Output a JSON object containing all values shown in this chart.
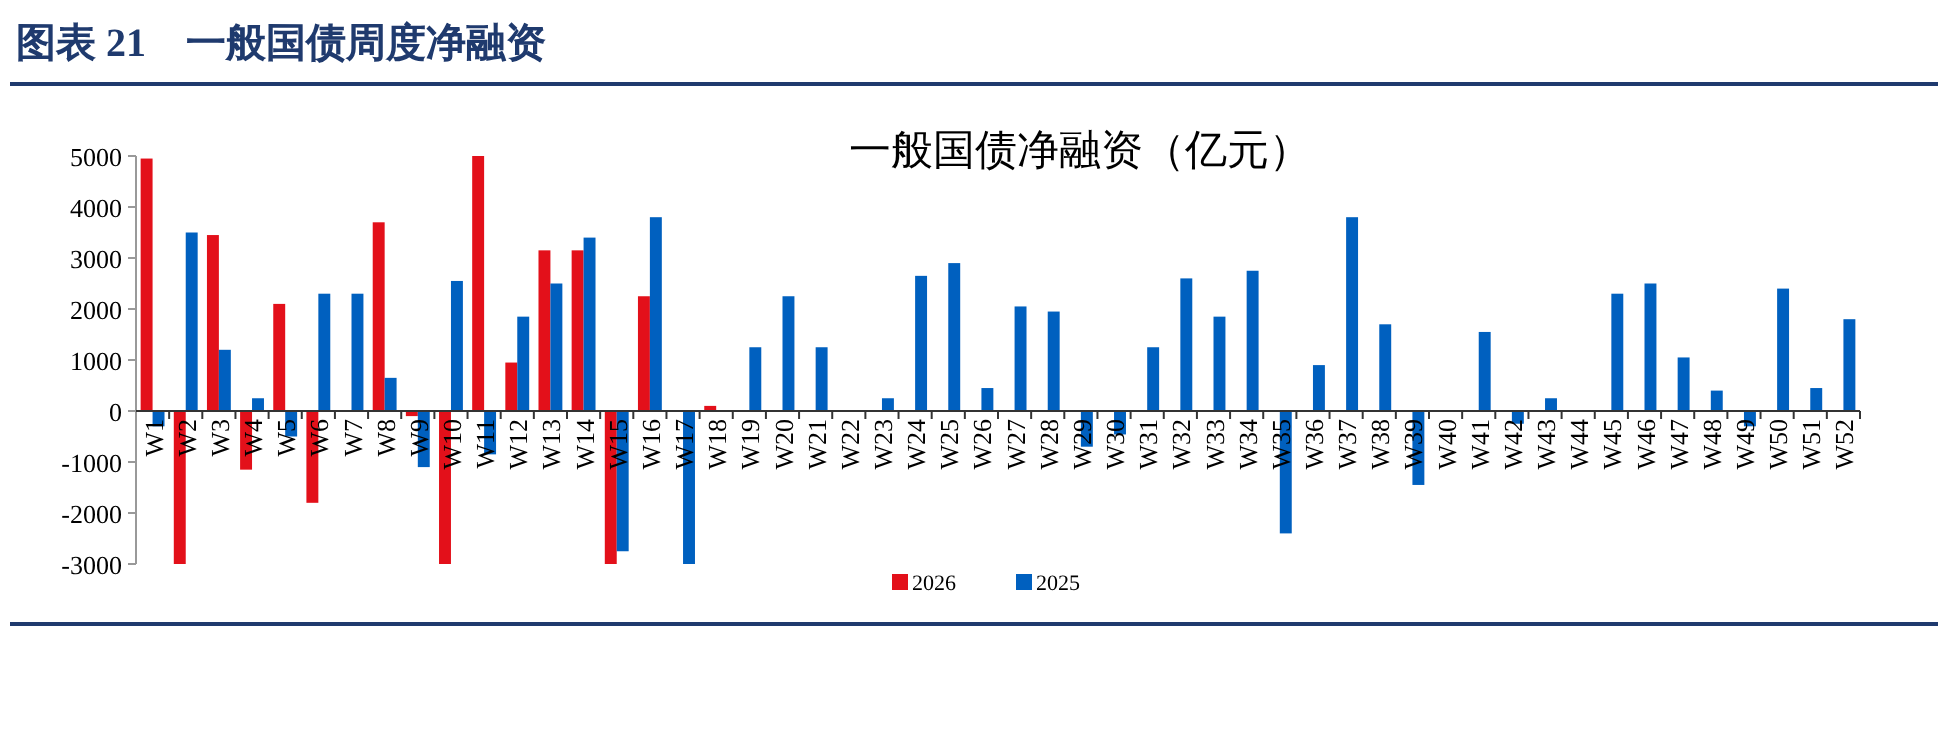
{
  "chart_data": {
    "type": "bar",
    "title": "图表 21　一般国债周度净融资",
    "subtitle": "一般国债净融资（亿元）",
    "categories": [
      "W1",
      "W2",
      "W3",
      "W4",
      "W5",
      "W6",
      "W7",
      "W8",
      "W9",
      "W10",
      "W11",
      "W12",
      "W13",
      "W14",
      "W15",
      "W16",
      "W17",
      "W18",
      "W19",
      "W20",
      "W21",
      "W22",
      "W23",
      "W24",
      "W25",
      "W26",
      "W27",
      "W28",
      "W29",
      "W30",
      "W31",
      "W32",
      "W33",
      "W34",
      "W35",
      "W36",
      "W37",
      "W38",
      "W39",
      "W40",
      "W41",
      "W42",
      "W43",
      "W44",
      "W45",
      "W46",
      "W47",
      "W48",
      "W49",
      "W50",
      "W51",
      "W52"
    ],
    "series": [
      {
        "name": "2026",
        "color": "#e3101a",
        "values": [
          4950,
          -3000,
          3450,
          -1150,
          2100,
          -1800,
          null,
          3700,
          -100,
          -3000,
          5000,
          950,
          3150,
          3150,
          -3000,
          2250,
          null,
          100,
          null,
          null,
          null,
          null,
          null,
          null,
          null,
          null,
          null,
          null,
          null,
          null,
          null,
          null,
          null,
          null,
          null,
          null,
          null,
          null,
          null,
          null,
          null,
          null,
          null,
          null,
          null,
          null,
          null,
          null,
          null,
          null,
          null,
          null
        ]
      },
      {
        "name": "2025",
        "color": "#0060bf",
        "values": [
          -300,
          3500,
          1200,
          250,
          -500,
          2300,
          2300,
          650,
          -1100,
          2550,
          -850,
          1850,
          2500,
          3400,
          -2750,
          3800,
          -3000,
          null,
          1250,
          2250,
          1250,
          null,
          250,
          2650,
          2900,
          450,
          2050,
          1950,
          -700,
          -460,
          1250,
          2600,
          1850,
          2750,
          -2400,
          900,
          3800,
          1700,
          -1450,
          null,
          1550,
          -250,
          250,
          null,
          2300,
          2500,
          1050,
          400,
          -300,
          2400,
          450,
          1800
        ]
      }
    ],
    "ylim": [
      -3000,
      5000
    ],
    "yticks": [
      -3000,
      -2000,
      -1000,
      0,
      1000,
      2000,
      3000,
      4000,
      5000
    ],
    "grid": false,
    "legend": "bottom"
  }
}
